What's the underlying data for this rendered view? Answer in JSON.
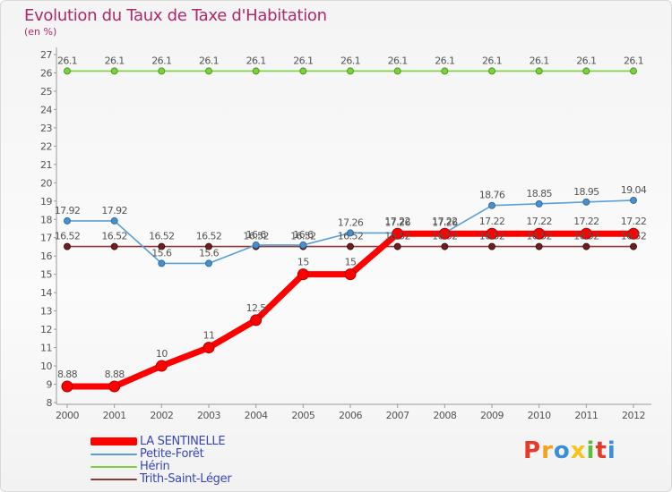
{
  "title": "Evolution du Taux de Taxe d'Habitation",
  "subtitle": "(en %)",
  "logo": "Proxiti",
  "chart_data": {
    "type": "line",
    "title": "Evolution du Taux de Taxe d'Habitation",
    "subtitle": "(en %)",
    "x": [
      2000,
      2001,
      2002,
      2003,
      2004,
      2005,
      2006,
      2007,
      2008,
      2009,
      2010,
      2011,
      2012
    ],
    "x_tick_labels": [
      "2000",
      "2001",
      "2002",
      "2003",
      "2004",
      "2005",
      "2006",
      "2007",
      "2008",
      "2009",
      "2010",
      "2011",
      "2012"
    ],
    "ylim": [
      8,
      27
    ],
    "y_ticks": [
      8,
      9,
      10,
      11,
      12,
      13,
      14,
      15,
      16,
      17,
      18,
      19,
      20,
      21,
      22,
      23,
      24,
      25,
      26,
      27
    ],
    "grid": false,
    "legend_position": "bottom-left",
    "series": [
      {
        "name": "LA SENTINELLE",
        "color": "#ff0000",
        "values": [
          8.88,
          8.88,
          10,
          11,
          12.5,
          15,
          15,
          17.22,
          17.22,
          17.22,
          17.22,
          17.22,
          17.22
        ],
        "labels": [
          "8.88",
          "8.88",
          "10",
          "11",
          "12.5",
          "15",
          "15",
          "17.22",
          "17.22",
          "17.22",
          "17.22",
          "17.22",
          "17.22"
        ]
      },
      {
        "name": "Petite-Forêt",
        "color": "#5b9fd6",
        "values": [
          17.92,
          17.92,
          15.6,
          15.6,
          16.6,
          16.6,
          17.26,
          17.26,
          17.26,
          18.76,
          18.85,
          18.95,
          19.04
        ],
        "labels": [
          "17.92",
          "17.92",
          "15.6",
          "15.6",
          "16.6",
          "16.6",
          "17.26",
          "17.26",
          "17.26",
          "18.76",
          "18.85",
          "18.95",
          "19.04"
        ]
      },
      {
        "name": "Hérin",
        "color": "#7dd040",
        "values": [
          26.1,
          26.1,
          26.1,
          26.1,
          26.1,
          26.1,
          26.1,
          26.1,
          26.1,
          26.1,
          26.1,
          26.1,
          26.1
        ],
        "labels": [
          "26.1",
          "26.1",
          "26.1",
          "26.1",
          "26.1",
          "26.1",
          "26.1",
          "26.1",
          "26.1",
          "26.1",
          "26.1",
          "26.1",
          "26.1"
        ]
      },
      {
        "name": "Trith-Saint-Léger",
        "color": "#8b3a3a",
        "values": [
          16.52,
          16.52,
          16.52,
          16.52,
          16.52,
          16.52,
          16.52,
          16.52,
          16.52,
          16.52,
          16.52,
          16.52,
          16.52
        ],
        "labels": [
          "16.52",
          "16.52",
          "16.52",
          "16.52",
          "16.52",
          "16.52",
          "16.52",
          "16.52",
          "16.52",
          "16.52",
          "16.52",
          "16.52",
          "16.52"
        ]
      }
    ]
  }
}
